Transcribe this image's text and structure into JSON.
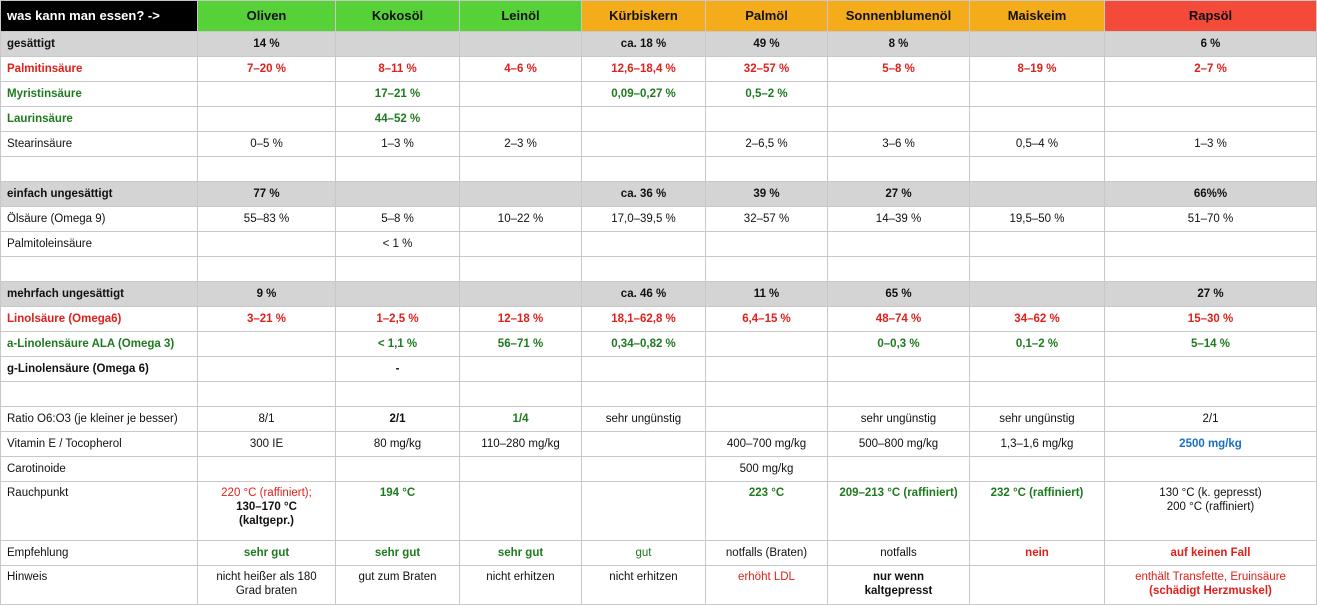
{
  "header": {
    "corner": "was kann man essen? ->",
    "oils": [
      "Oliven",
      "Kokosöl",
      "Leinöl",
      "Kürbiskern",
      "Palmöl",
      "Sonnenblumenöl",
      "Maiskeim",
      "Rapsöl"
    ],
    "header_colors": [
      "#000000",
      "#56d238",
      "#56d238",
      "#56d238",
      "#f5ac1b",
      "#f5ac1b",
      "#f5ac1b",
      "#f5ac1b",
      "#f44a3a"
    ]
  },
  "rows": [
    {
      "label": "gesättigt",
      "cells": [
        "14 %",
        "",
        "",
        "ca. 18 %",
        "49 %",
        "8 %",
        "",
        "6 %"
      ]
    },
    {
      "label": "Palmitinsäure",
      "cells": [
        "7–20 %",
        "8–11 %",
        "4–6 %",
        "12,6–18,4 %",
        "32–57 %",
        "5–8 %",
        "8–19 %",
        "2–7 %"
      ]
    },
    {
      "label": "Myristinsäure",
      "cells": [
        "",
        "17–21 %",
        "",
        "0,09–0,27 %",
        "0,5–2 %",
        "",
        "",
        ""
      ]
    },
    {
      "label": "Laurinsäure",
      "cells": [
        "",
        "44–52 %",
        "",
        "",
        "",
        "",
        "",
        ""
      ]
    },
    {
      "label": "Stearinsäure",
      "cells": [
        "0–5 %",
        "1–3 %",
        "2–3 %",
        "",
        "2–6,5 %",
        "3–6 %",
        "0,5–4 %",
        "1–3 %"
      ]
    },
    {
      "label": "",
      "cells": [
        "",
        "",
        "",
        "",
        "",
        "",
        "",
        ""
      ]
    },
    {
      "label": "einfach ungesättigt",
      "cells": [
        "77 %",
        "",
        "",
        "ca. 36 %",
        "39 %",
        "27 %",
        "",
        "66%%"
      ]
    },
    {
      "label": "Ölsäure (Omega 9)",
      "cells": [
        "55–83 %",
        "5–8 %",
        "10–22 %",
        "17,0–39,5 %",
        "32–57 %",
        "14–39 %",
        "19,5–50 %",
        "51–70 %"
      ]
    },
    {
      "label": "Palmitoleinsäure",
      "cells": [
        "",
        "< 1 %",
        "",
        "",
        "",
        "",
        "",
        ""
      ]
    },
    {
      "label": "",
      "cells": [
        "",
        "",
        "",
        "",
        "",
        "",
        "",
        ""
      ]
    },
    {
      "label": "mehrfach ungesättigt",
      "cells": [
        "9 %",
        "",
        "",
        "ca. 46 %",
        "11 %",
        "65 %",
        "",
        "27 %"
      ]
    },
    {
      "label": "Linolsäure (Omega6)",
      "cells": [
        "3–21 %",
        "1–2,5 %",
        "12–18 %",
        "18,1–62,8 %",
        "6,4–15 %",
        "48–74 %",
        "34–62 %",
        "15–30 %"
      ]
    },
    {
      "label": "a-Linolensäure ALA (Omega 3)",
      "cells": [
        "",
        "< 1,1 %",
        "56–71 %",
        "0,34–0,82 %",
        "",
        "0–0,3 %",
        "0,1–2 %",
        "5–14 %"
      ]
    },
    {
      "label": "g-Linolensäure (Omega 6)",
      "cells": [
        "",
        "-",
        "",
        "",
        "",
        "",
        "",
        ""
      ]
    },
    {
      "label": "",
      "cells": [
        "",
        "",
        "",
        "",
        "",
        "",
        "",
        ""
      ]
    },
    {
      "label": "Ratio O6:O3 (je kleiner je besser)",
      "cells": [
        "8/1",
        "2/1",
        "1/4",
        "sehr ungünstig",
        "",
        "sehr ungünstig",
        "sehr ungünstig",
        "2/1"
      ]
    },
    {
      "label": "Vitamin E / Tocopherol",
      "cells": [
        "300 IE",
        "80 mg/kg",
        "110–280 mg/kg",
        "",
        "400–700 mg/kg",
        "500–800 mg/kg",
        "1,3–1,6 mg/kg",
        "2500 mg/kg"
      ]
    },
    {
      "label": "Carotinoide",
      "cells": [
        "",
        "",
        "",
        "",
        "500 mg/kg",
        "",
        "",
        ""
      ]
    },
    {
      "label": "Rauchpunkt",
      "cells": [
        [
          "220 °C (raffiniert);",
          "130–170 °C",
          "(kaltgepr.)"
        ],
        [
          "194 °C"
        ],
        [
          ""
        ],
        [
          ""
        ],
        [
          "223 °C"
        ],
        [
          "209–213 °C (raffiniert)"
        ],
        [
          "232 °C (raffiniert)"
        ],
        [
          "130 °C (k. gepresst)",
          "200 °C (raffiniert)"
        ]
      ]
    },
    {
      "label": "Empfehlung",
      "cells": [
        "sehr gut",
        "sehr gut",
        "sehr gut",
        "gut",
        "notfalls (Braten)",
        "notfalls",
        "nein",
        "auf keinen Fall"
      ]
    },
    {
      "label": "Hinweis",
      "cells": [
        [
          "nicht heißer als 180",
          "Grad braten"
        ],
        [
          "gut zum Braten"
        ],
        [
          "nicht erhitzen"
        ],
        [
          "nicht erhitzen"
        ],
        [
          "erhöht LDL"
        ],
        [
          "nur wenn",
          "kaltgepresst"
        ],
        [
          ""
        ],
        [
          "enthält Transfette, Eruinsäure",
          "(schädigt Herzmuskel)"
        ]
      ]
    }
  ],
  "colors": {
    "red": "#e0201b",
    "green": "#1f7a1f",
    "blue": "#1a6fc0",
    "section_gray": "#d4d4d4"
  }
}
